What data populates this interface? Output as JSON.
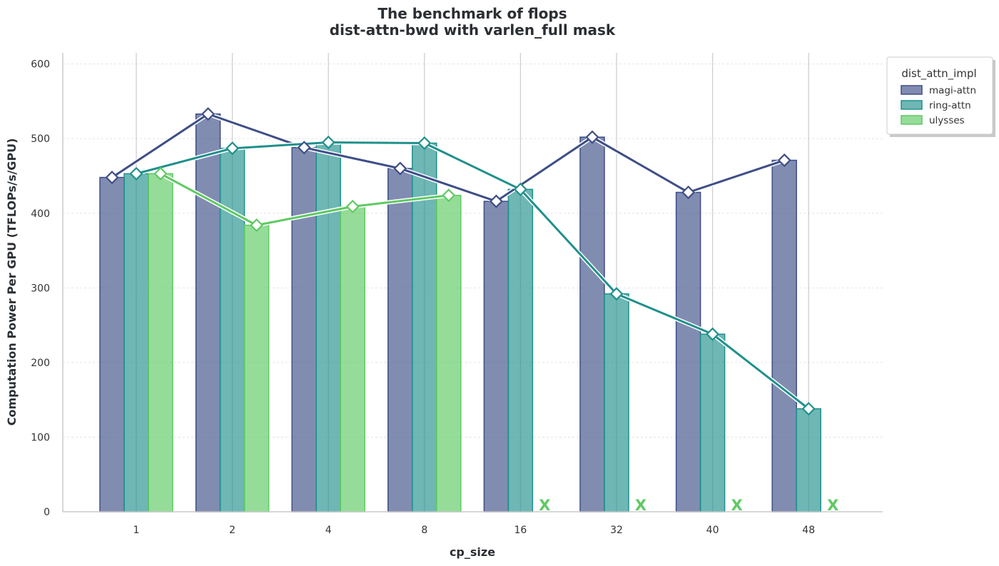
{
  "chart_data": {
    "type": "bar",
    "title_lines": [
      "The benchmark of flops",
      "dist-attn-bwd with varlen_full mask"
    ],
    "xlabel": "cp_size",
    "ylabel": "Computation Power Per GPU (TFLOPs/s/GPU)",
    "categories": [
      "1",
      "2",
      "4",
      "8",
      "16",
      "32",
      "40",
      "48"
    ],
    "ylim": [
      0,
      615
    ],
    "yticks": [
      "0",
      "100",
      "200",
      "300",
      "400",
      "500",
      "600"
    ],
    "grid": true,
    "legend_title": "dist_attn_impl",
    "legend_position": "top-right",
    "series": [
      {
        "name": "magi-attn",
        "values": [
          448,
          533,
          488,
          460,
          416,
          502,
          428,
          471
        ],
        "color": "#3e4e87"
      },
      {
        "name": "ring-attn",
        "values": [
          453,
          487,
          495,
          494,
          432,
          292,
          238,
          138
        ],
        "color": "#20908c"
      },
      {
        "name": "ulysses",
        "values": [
          453,
          384,
          409,
          424,
          null,
          null,
          null,
          null
        ],
        "color": "#5ec962"
      }
    ],
    "missing_marker": "X"
  }
}
